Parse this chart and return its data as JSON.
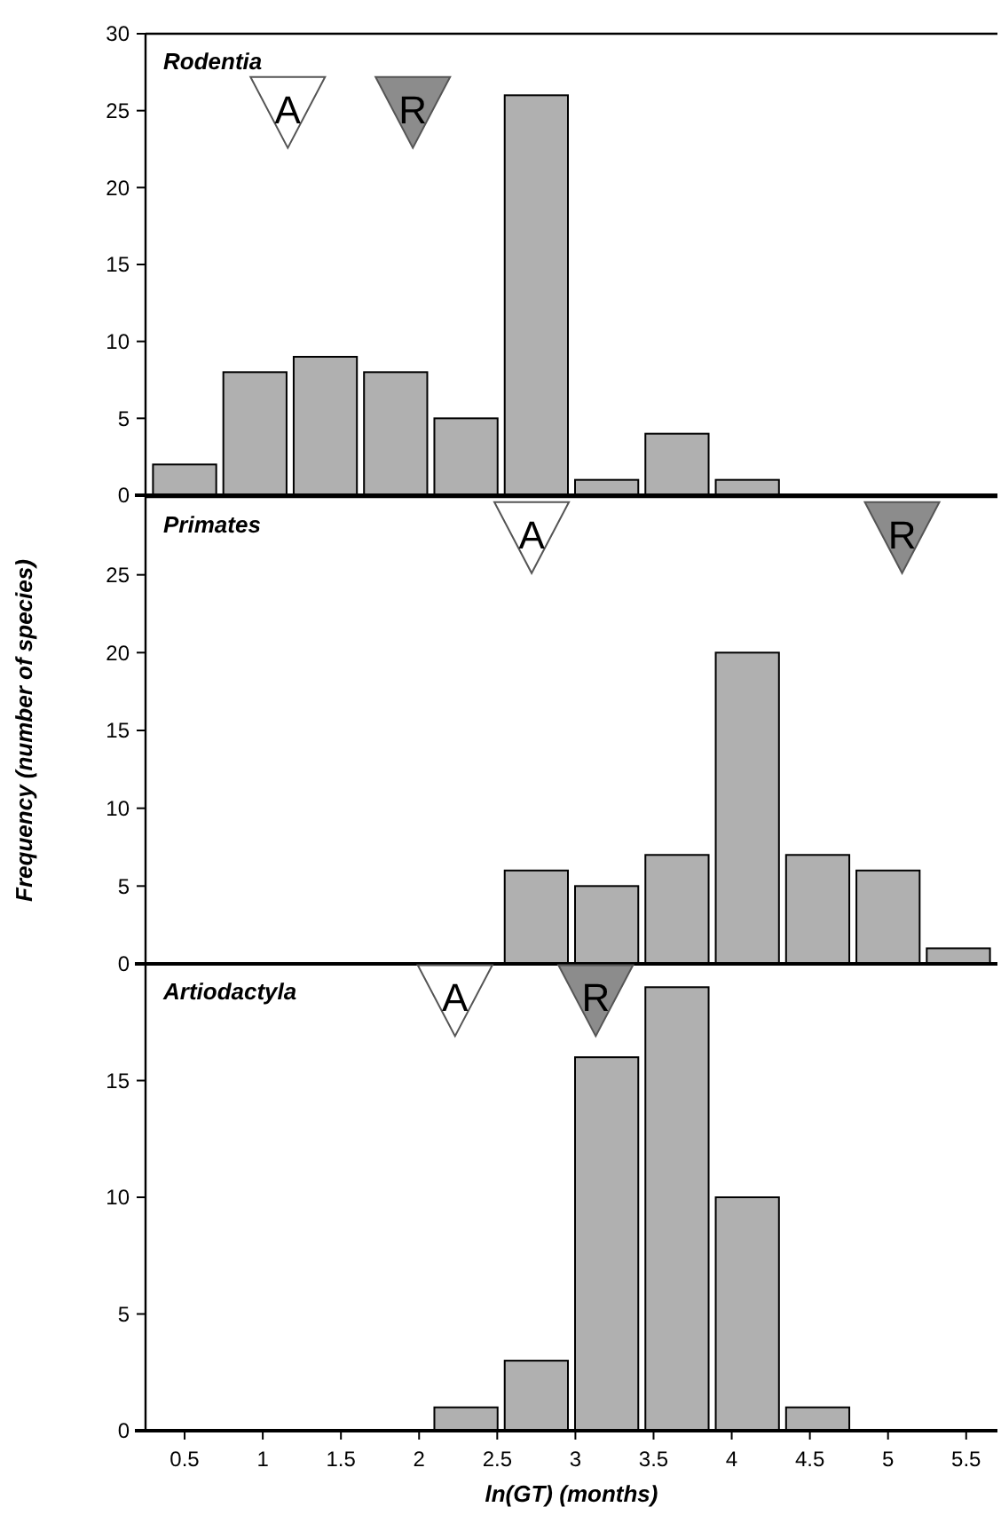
{
  "chart_data": [
    {
      "type": "histogram",
      "title": "Rodentia",
      "bins": [
        0.275,
        0.725,
        1.175,
        1.625,
        2.075,
        2.525,
        2.975,
        3.425,
        3.875,
        4.325,
        4.775,
        5.225,
        5.675
      ],
      "values": [
        2,
        8,
        9,
        8,
        5,
        26,
        1,
        4,
        1,
        0,
        0,
        0
      ],
      "color": "#b0b0b0",
      "xlim": [
        0.25,
        5.7
      ],
      "ylim": [
        0,
        30
      ],
      "yticks": [
        0,
        5,
        10,
        15,
        20,
        25,
        30
      ],
      "tick_labels": "y",
      "annotations": [
        {
          "text": "A",
          "x": 1.16,
          "y": 25
        },
        {
          "text": "R",
          "x": 1.96,
          "y": 25
        }
      ]
    },
    {
      "type": "histogram",
      "title": "Primates",
      "ylabel": "Frequency (number of species)",
      "bins": [
        0.275,
        0.725,
        1.175,
        1.625,
        2.075,
        2.525,
        2.975,
        3.425,
        3.875,
        4.325,
        4.775,
        5.225,
        5.675
      ],
      "values": [
        0,
        0,
        0,
        0,
        0,
        6,
        5,
        7,
        20,
        7,
        6,
        1
      ],
      "color": "#b0b0b0",
      "xlim": [
        0.25,
        5.7
      ],
      "ylim": [
        0,
        30
      ],
      "yticks": [
        0,
        5,
        10,
        15,
        20,
        25
      ],
      "tick_labels": "y",
      "annotations": [
        {
          "text": "A",
          "x": 2.72,
          "y": 27.5
        },
        {
          "text": "R",
          "x": 5.09,
          "y": 27.5
        }
      ]
    },
    {
      "type": "histogram",
      "title": "Artiodactyla",
      "xlabel": "ln(GT) (months)",
      "bins": [
        0.275,
        0.725,
        1.175,
        1.625,
        2.075,
        2.525,
        2.975,
        3.425,
        3.875,
        4.325,
        4.775,
        5.225,
        5.675
      ],
      "values": [
        0,
        0,
        0,
        0,
        1,
        3,
        16,
        19,
        10,
        1,
        0,
        0
      ],
      "color": "#b0b0b0",
      "xlim": [
        0.25,
        5.7
      ],
      "xticks": [
        0.5,
        1,
        1.5,
        2,
        2.5,
        3,
        3.5,
        4,
        4.5,
        5,
        5.5
      ],
      "ylim": [
        0,
        20
      ],
      "yticks": [
        0,
        5,
        10,
        15
      ],
      "annotations": [
        {
          "text": "A",
          "x": 2.23,
          "y": 18.5
        },
        {
          "text": "R",
          "x": 3.13,
          "y": 18.5
        }
      ]
    }
  ]
}
